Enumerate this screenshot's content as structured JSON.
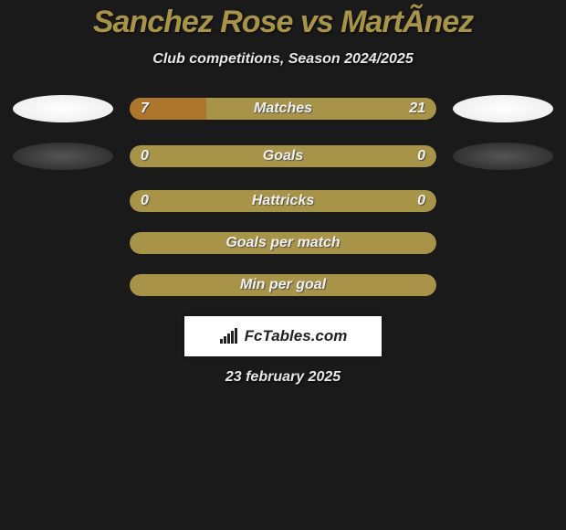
{
  "title": "Sanchez Rose vs MartÃ­nez",
  "subtitle": "Club competitions, Season 2024/2025",
  "date_text": "23 february 2025",
  "badge_text": "FcTables.com",
  "colors": {
    "background": "#1a1a1a",
    "bar_base": "#a89448",
    "bar_fill": "#ac762c",
    "title_color": "#a89448",
    "text_light": "#e8e8e8",
    "oval_light": "#f0f0f0",
    "oval_dark": "#444444"
  },
  "bars": [
    {
      "label": "Matches",
      "left_value": "7",
      "right_value": "21",
      "left_pct": 25,
      "right_pct": 0,
      "show_left_oval": true,
      "show_right_oval": true,
      "oval_dark": false
    },
    {
      "label": "Goals",
      "left_value": "0",
      "right_value": "0",
      "left_pct": 0,
      "right_pct": 0,
      "show_left_oval": true,
      "show_right_oval": true,
      "oval_dark": true
    },
    {
      "label": "Hattricks",
      "left_value": "0",
      "right_value": "0",
      "left_pct": 0,
      "right_pct": 0,
      "show_left_oval": false,
      "show_right_oval": false,
      "oval_dark": false
    },
    {
      "label": "Goals per match",
      "left_value": "",
      "right_value": "",
      "left_pct": 0,
      "right_pct": 0,
      "show_left_oval": false,
      "show_right_oval": false,
      "oval_dark": false
    },
    {
      "label": "Min per goal",
      "left_value": "",
      "right_value": "",
      "left_pct": 0,
      "right_pct": 0,
      "show_left_oval": false,
      "show_right_oval": false,
      "oval_dark": false
    }
  ]
}
